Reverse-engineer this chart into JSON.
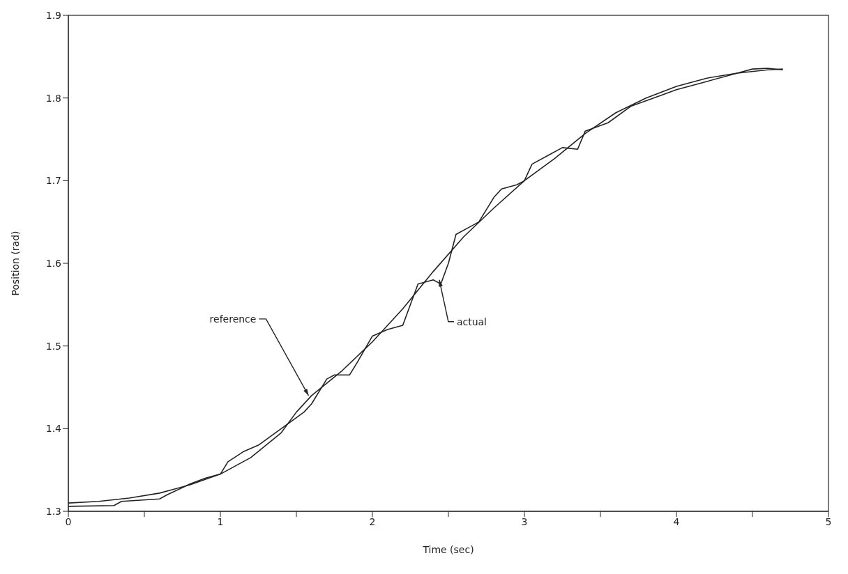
{
  "chart_data": {
    "type": "line",
    "xlabel": "Time (sec)",
    "ylabel": "Position (rad)",
    "xlim": [
      0,
      5
    ],
    "ylim": [
      1.3,
      1.9
    ],
    "xticks": [
      0,
      {
        "value": 0.5,
        "label": null
      },
      1,
      {
        "value": 1.5,
        "label": null
      },
      2,
      {
        "value": 2.5,
        "label": null
      },
      3,
      {
        "value": 3.5,
        "label": null
      },
      4,
      {
        "value": 4.5,
        "label": null
      },
      5
    ],
    "yticks": [
      1.3,
      1.4,
      1.5,
      1.6,
      1.7,
      1.8,
      1.9
    ],
    "series": [
      {
        "color": "#222222",
        "x": [
          0,
          0.2,
          0.4,
          0.6,
          0.8,
          1.0,
          1.2,
          1.4,
          1.5,
          1.6,
          1.8,
          2.0,
          2.2,
          2.4,
          2.6,
          2.8,
          3.0,
          3.2,
          3.4,
          3.6,
          3.8,
          4.0,
          4.2,
          4.4,
          4.6,
          4.7
        ],
        "values": [
          1.31,
          1.312,
          1.316,
          1.322,
          1.332,
          1.345,
          1.365,
          1.395,
          1.42,
          1.44,
          1.47,
          1.505,
          1.545,
          1.59,
          1.632,
          1.667,
          1.7,
          1.727,
          1.757,
          1.782,
          1.8,
          1.814,
          1.824,
          1.83,
          1.834,
          1.835
        ]
      },
      {
        "color": "#222222",
        "x": [
          0,
          0.3,
          0.35,
          0.6,
          0.65,
          0.8,
          0.9,
          1.0,
          1.05,
          1.15,
          1.25,
          1.4,
          1.55,
          1.6,
          1.7,
          1.75,
          1.85,
          1.9,
          2.0,
          2.1,
          2.2,
          2.25,
          2.3,
          2.4,
          2.45,
          2.5,
          2.55,
          2.65,
          2.7,
          2.8,
          2.85,
          2.95,
          3.0,
          3.05,
          3.15,
          3.25,
          3.35,
          3.4,
          3.55,
          3.7,
          3.85,
          4.0,
          4.2,
          4.4,
          4.5,
          4.6,
          4.7
        ],
        "values": [
          1.306,
          1.307,
          1.312,
          1.315,
          1.32,
          1.333,
          1.34,
          1.345,
          1.36,
          1.372,
          1.38,
          1.4,
          1.42,
          1.43,
          1.46,
          1.465,
          1.465,
          1.48,
          1.512,
          1.52,
          1.525,
          1.55,
          1.575,
          1.58,
          1.575,
          1.6,
          1.635,
          1.645,
          1.65,
          1.68,
          1.69,
          1.695,
          1.7,
          1.72,
          1.73,
          1.74,
          1.738,
          1.76,
          1.77,
          1.79,
          1.8,
          1.81,
          1.82,
          1.83,
          1.835,
          1.836,
          1.834
        ]
      }
    ],
    "annotations": [
      {
        "text": "reference",
        "x": 1.58,
        "y": 1.44
      },
      {
        "text": "actual",
        "x": 2.44,
        "y": 1.58
      }
    ]
  }
}
